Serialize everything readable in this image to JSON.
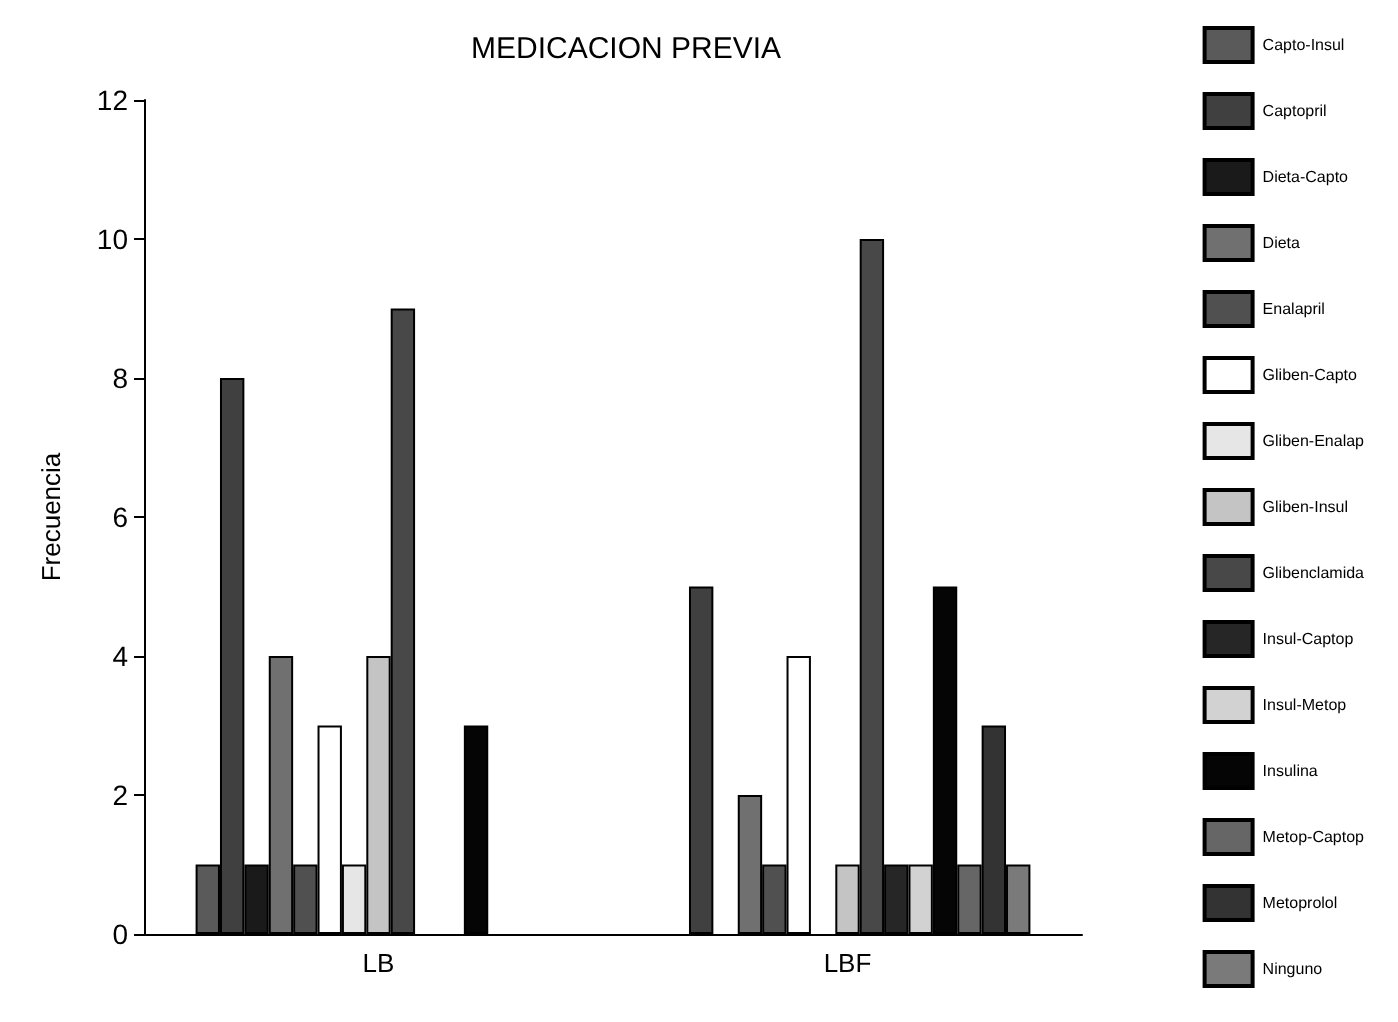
{
  "chart_data": {
    "type": "bar",
    "title": "MEDICACION PREVIA",
    "ylabel": "Frecuencia",
    "categories": [
      "LB",
      "LBF"
    ],
    "series": [
      {
        "name": "Capto-Insul",
        "color": "#5a5a5a",
        "values": [
          1,
          0
        ]
      },
      {
        "name": "Captopril",
        "color": "#404040",
        "values": [
          8,
          5
        ]
      },
      {
        "name": "Dieta-Capto",
        "color": "#1a1a1a",
        "values": [
          1,
          0
        ]
      },
      {
        "name": "Dieta",
        "color": "#707070",
        "values": [
          4,
          2
        ]
      },
      {
        "name": "Enalapril",
        "color": "#505050",
        "values": [
          1,
          1
        ]
      },
      {
        "name": "Gliben-Capto",
        "color": "#ffffff",
        "values": [
          3,
          4
        ]
      },
      {
        "name": "Gliben-Enalap",
        "color": "#e6e6e6",
        "values": [
          1,
          0
        ]
      },
      {
        "name": "Gliben-Insul",
        "color": "#c4c4c4",
        "values": [
          4,
          1
        ]
      },
      {
        "name": "Glibenclamida",
        "color": "#484848",
        "values": [
          9,
          10
        ]
      },
      {
        "name": "Insul-Captop",
        "color": "#262626",
        "values": [
          0,
          1
        ]
      },
      {
        "name": "Insul-Metop",
        "color": "#d2d2d2",
        "values": [
          0,
          1
        ]
      },
      {
        "name": "Insulina",
        "color": "#050505",
        "values": [
          3,
          5
        ]
      },
      {
        "name": "Metop-Captop",
        "color": "#666666",
        "values": [
          0,
          1
        ]
      },
      {
        "name": "Metoprolol",
        "color": "#333333",
        "values": [
          0,
          3
        ]
      },
      {
        "name": "Ninguno",
        "color": "#7a7a7a",
        "values": [
          0,
          1
        ]
      }
    ],
    "ylim": [
      0,
      12
    ],
    "yticks": [
      0,
      2,
      4,
      6,
      8,
      10,
      12
    ],
    "grid": false,
    "legend": "right"
  }
}
